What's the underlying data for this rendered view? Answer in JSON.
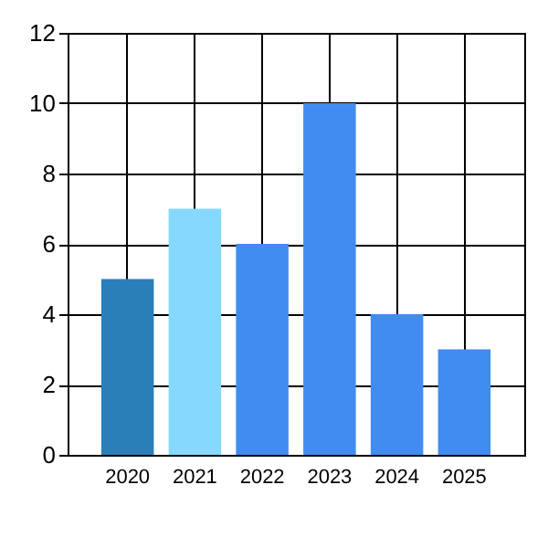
{
  "chart_data": {
    "type": "bar",
    "categories": [
      "2020",
      "2021",
      "2022",
      "2023",
      "2024",
      "2025"
    ],
    "values": [
      5,
      7,
      6,
      10,
      4,
      3
    ],
    "colors": [
      "#2a7fb8",
      "#87d8fe",
      "#418cf0",
      "#418cf0",
      "#418cf0",
      "#418cf0"
    ],
    "ylim": [
      0,
      12
    ],
    "yticks": [
      0,
      2,
      4,
      6,
      8,
      10,
      12
    ],
    "grid": true
  }
}
